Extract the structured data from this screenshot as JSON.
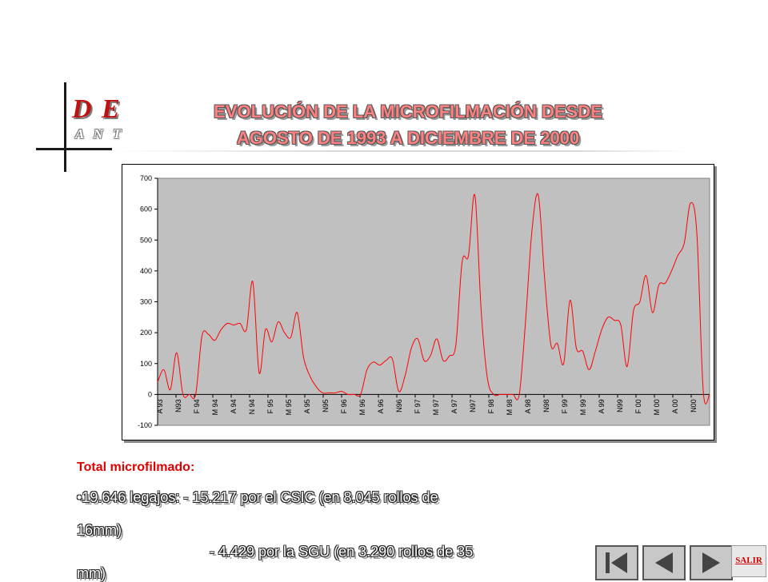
{
  "logo": {
    "main": "D E",
    "sub": "A N T"
  },
  "title": {
    "line1": "EVOLUCIÓN DE LA MICROFILMACIÓN DESDE",
    "line2": "AGOSTO DE 1993 A DICIEMBRE DE 2000"
  },
  "colors": {
    "line": "#ff0000",
    "plot_bg": "#c0c0c0",
    "title": "#ff8080",
    "heading": "#e00000"
  },
  "chart_data": {
    "type": "line",
    "title": "",
    "xlabel": "",
    "ylabel": "",
    "ylim": [
      -100,
      700
    ],
    "yticks": [
      -100,
      0,
      100,
      200,
      300,
      400,
      500,
      600,
      700
    ],
    "grid": false,
    "legend": "none",
    "x_tick_labels": [
      "A 93",
      "N93",
      "F 94",
      "M 94",
      "A 94",
      "N 94",
      "F 95",
      "M 95",
      "A 95",
      "N95",
      "F 96",
      "M 96",
      "A 96",
      "N96",
      "F 97",
      "M 97",
      "A 97",
      "N97",
      "F 98",
      "M 98",
      "A 98",
      "N98",
      "F 99",
      "M 99",
      "A 99",
      "N99",
      "F 00",
      "M 00",
      "A 00",
      "N00"
    ],
    "series": [
      {
        "name": "",
        "values": [
          40,
          80,
          15,
          135,
          0,
          0,
          0,
          190,
          195,
          175,
          210,
          230,
          225,
          230,
          210,
          365,
          70,
          210,
          170,
          235,
          200,
          185,
          265,
          120,
          60,
          25,
          5,
          5,
          5,
          10,
          0,
          0,
          0,
          80,
          105,
          95,
          110,
          115,
          10,
          60,
          150,
          180,
          110,
          125,
          180,
          110,
          125,
          160,
          430,
          450,
          645,
          270,
          50,
          0,
          0,
          0,
          0,
          0,
          240,
          530,
          645,
          375,
          160,
          165,
          100,
          305,
          150,
          140,
          80,
          140,
          210,
          250,
          240,
          225,
          90,
          270,
          300,
          385,
          265,
          355,
          360,
          400,
          450,
          490,
          620,
          520,
          10,
          0
        ]
      }
    ]
  },
  "text": {
    "heading": "Total microfilmado:",
    "line1": "•19.646 legajos: - 15.217 por el CSIC  (en 8.045 rollos de",
    "line2": "16mm)",
    "line3": "- 4.429 por la SGU (en 3.290 rollos de 35",
    "line4": "mm)"
  },
  "nav": {
    "first_icon": "first-page-icon",
    "prev_icon": "previous-page-icon",
    "next_icon": "next-page-icon",
    "exit_label": "SALIR"
  }
}
